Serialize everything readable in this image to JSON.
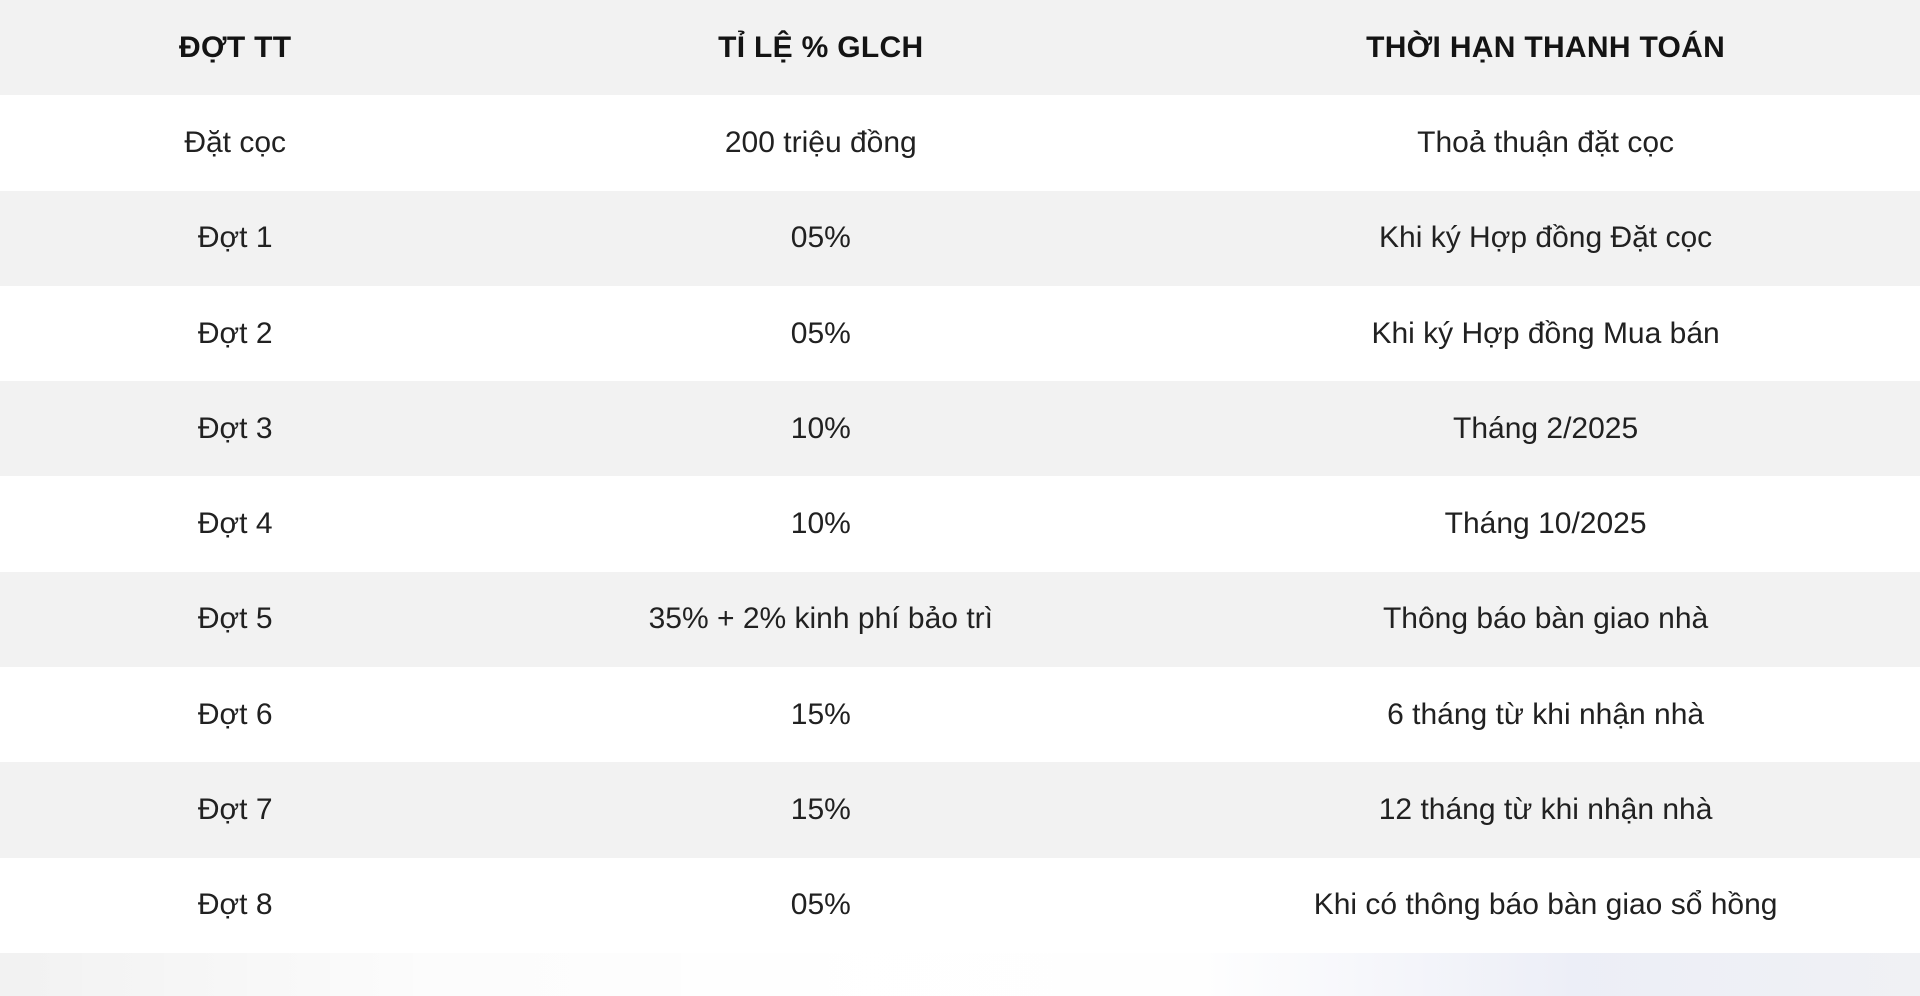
{
  "table": {
    "columns": [
      {
        "key": "installment",
        "label": "ĐỢT TT"
      },
      {
        "key": "rate",
        "label": "TỈ LỆ % GLCH"
      },
      {
        "key": "deadline",
        "label": "THỜI HẠN THANH TOÁN"
      }
    ],
    "rows": [
      [
        "Đặt cọc",
        "200 triệu đồng",
        "Thoả thuận đặt cọc"
      ],
      [
        "Đợt 1",
        "05%",
        "Khi ký Hợp đồng Đặt cọc"
      ],
      [
        "Đợt 2",
        "05%",
        "Khi ký Hợp đồng Mua bán"
      ],
      [
        "Đợt 3",
        "10%",
        "Tháng 2/2025"
      ],
      [
        "Đợt 4",
        "10%",
        "Tháng 10/2025"
      ],
      [
        "Đợt 5",
        "35% + 2% kinh phí bảo trì",
        "Thông báo bàn giao nhà"
      ],
      [
        "Đợt 6",
        "15%",
        "6 tháng từ khi nhận nhà"
      ],
      [
        "Đợt 7",
        "15%",
        "12 tháng từ khi nhận nhà"
      ],
      [
        "Đợt 8",
        "05%",
        "Khi có thông báo bàn giao sổ hồng"
      ]
    ]
  },
  "colors": {
    "stripe_bg": "#f2f2f2",
    "row_bg": "#ffffff",
    "text": "#212121",
    "header_text": "#141414"
  }
}
